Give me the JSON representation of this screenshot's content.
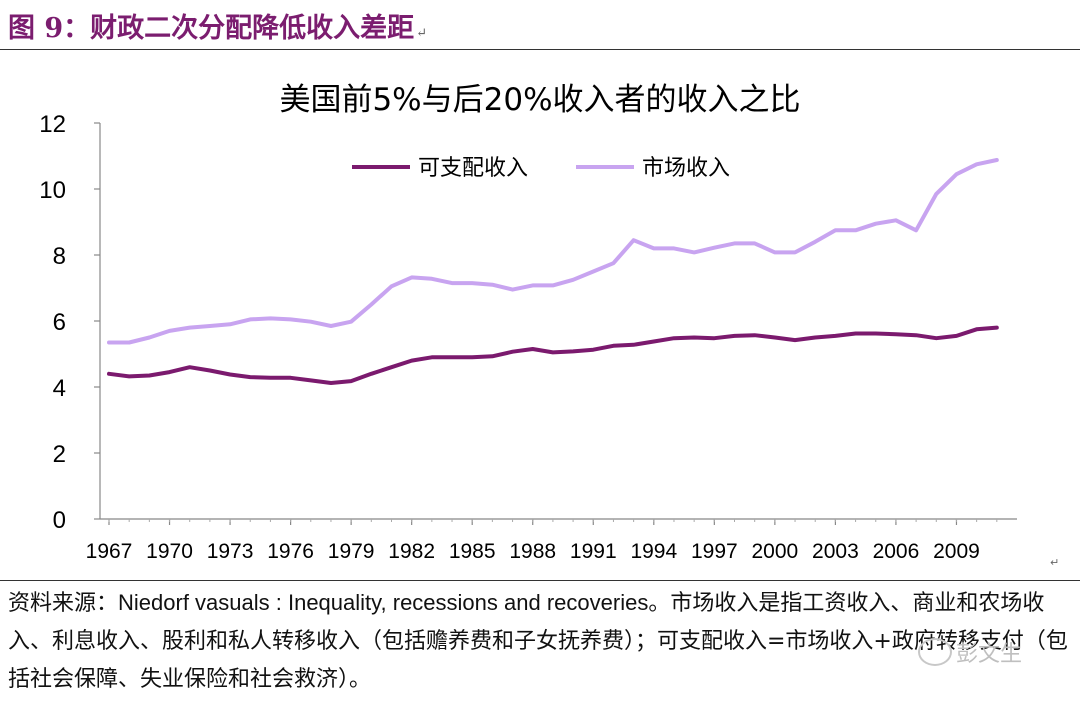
{
  "figure": {
    "title": "图 9：财政二次分配降低收入差距",
    "return_mark": "↵"
  },
  "chart_data": {
    "type": "line",
    "title": "美国前5%与后20%收入者的收入之比",
    "xlabel": "",
    "ylabel": "",
    "x": [
      1967,
      1968,
      1969,
      1970,
      1971,
      1972,
      1973,
      1974,
      1975,
      1976,
      1977,
      1978,
      1979,
      1980,
      1981,
      1982,
      1983,
      1984,
      1985,
      1986,
      1987,
      1988,
      1989,
      1990,
      1991,
      1992,
      1993,
      1994,
      1995,
      1996,
      1997,
      1998,
      1999,
      2000,
      2001,
      2002,
      2003,
      2004,
      2005,
      2006,
      2007,
      2008,
      2009,
      2010,
      2011
    ],
    "xticks": [
      "1967",
      "1970",
      "1973",
      "1976",
      "1979",
      "1982",
      "1985",
      "1988",
      "1991",
      "1994",
      "1997",
      "2000",
      "2003",
      "2006",
      "2009"
    ],
    "ylim": [
      0,
      12
    ],
    "yticks": [
      "0",
      "2",
      "4",
      "6",
      "8",
      "10",
      "12"
    ],
    "legend_position": "top",
    "series": [
      {
        "name": "可支配收入",
        "color": "#7b1a6e",
        "values": [
          4.4,
          4.32,
          4.35,
          4.45,
          4.6,
          4.5,
          4.38,
          4.3,
          4.28,
          4.28,
          4.2,
          4.12,
          4.18,
          4.4,
          4.6,
          4.8,
          4.9,
          4.9,
          4.9,
          4.93,
          5.07,
          5.15,
          5.05,
          5.08,
          5.13,
          5.25,
          5.28,
          5.38,
          5.48,
          5.5,
          5.48,
          5.55,
          5.57,
          5.5,
          5.42,
          5.5,
          5.55,
          5.62,
          5.62,
          5.6,
          5.57,
          5.48,
          5.55,
          5.75,
          5.8
        ]
      },
      {
        "name": "市场收入",
        "color": "#c8a4f0",
        "values": [
          5.35,
          5.35,
          5.5,
          5.7,
          5.8,
          5.85,
          5.9,
          6.05,
          6.08,
          6.05,
          5.98,
          5.85,
          5.98,
          6.5,
          7.05,
          7.32,
          7.28,
          7.15,
          7.15,
          7.1,
          6.95,
          7.08,
          7.08,
          7.25,
          7.5,
          7.75,
          8.45,
          8.2,
          8.2,
          8.08,
          8.22,
          8.35,
          8.35,
          8.08,
          8.08,
          8.4,
          8.75,
          8.75,
          8.95,
          9.05,
          8.75,
          9.85,
          10.45,
          10.75,
          10.88
        ]
      }
    ]
  },
  "note": {
    "prefix": "资料来源：",
    "source_en": "Niedorf vasuals : Inequality, recessions and recoveries",
    "body": "。市场收入是指工资收入、商业和农场收入、利息收入、股利和私人转移收入（包括赡养费和子女抚养费）；可支配收入=市场收入+政府转移支付（包括社会保障、失业保险和社会救济）。"
  },
  "watermark": {
    "text": "彭文生"
  }
}
